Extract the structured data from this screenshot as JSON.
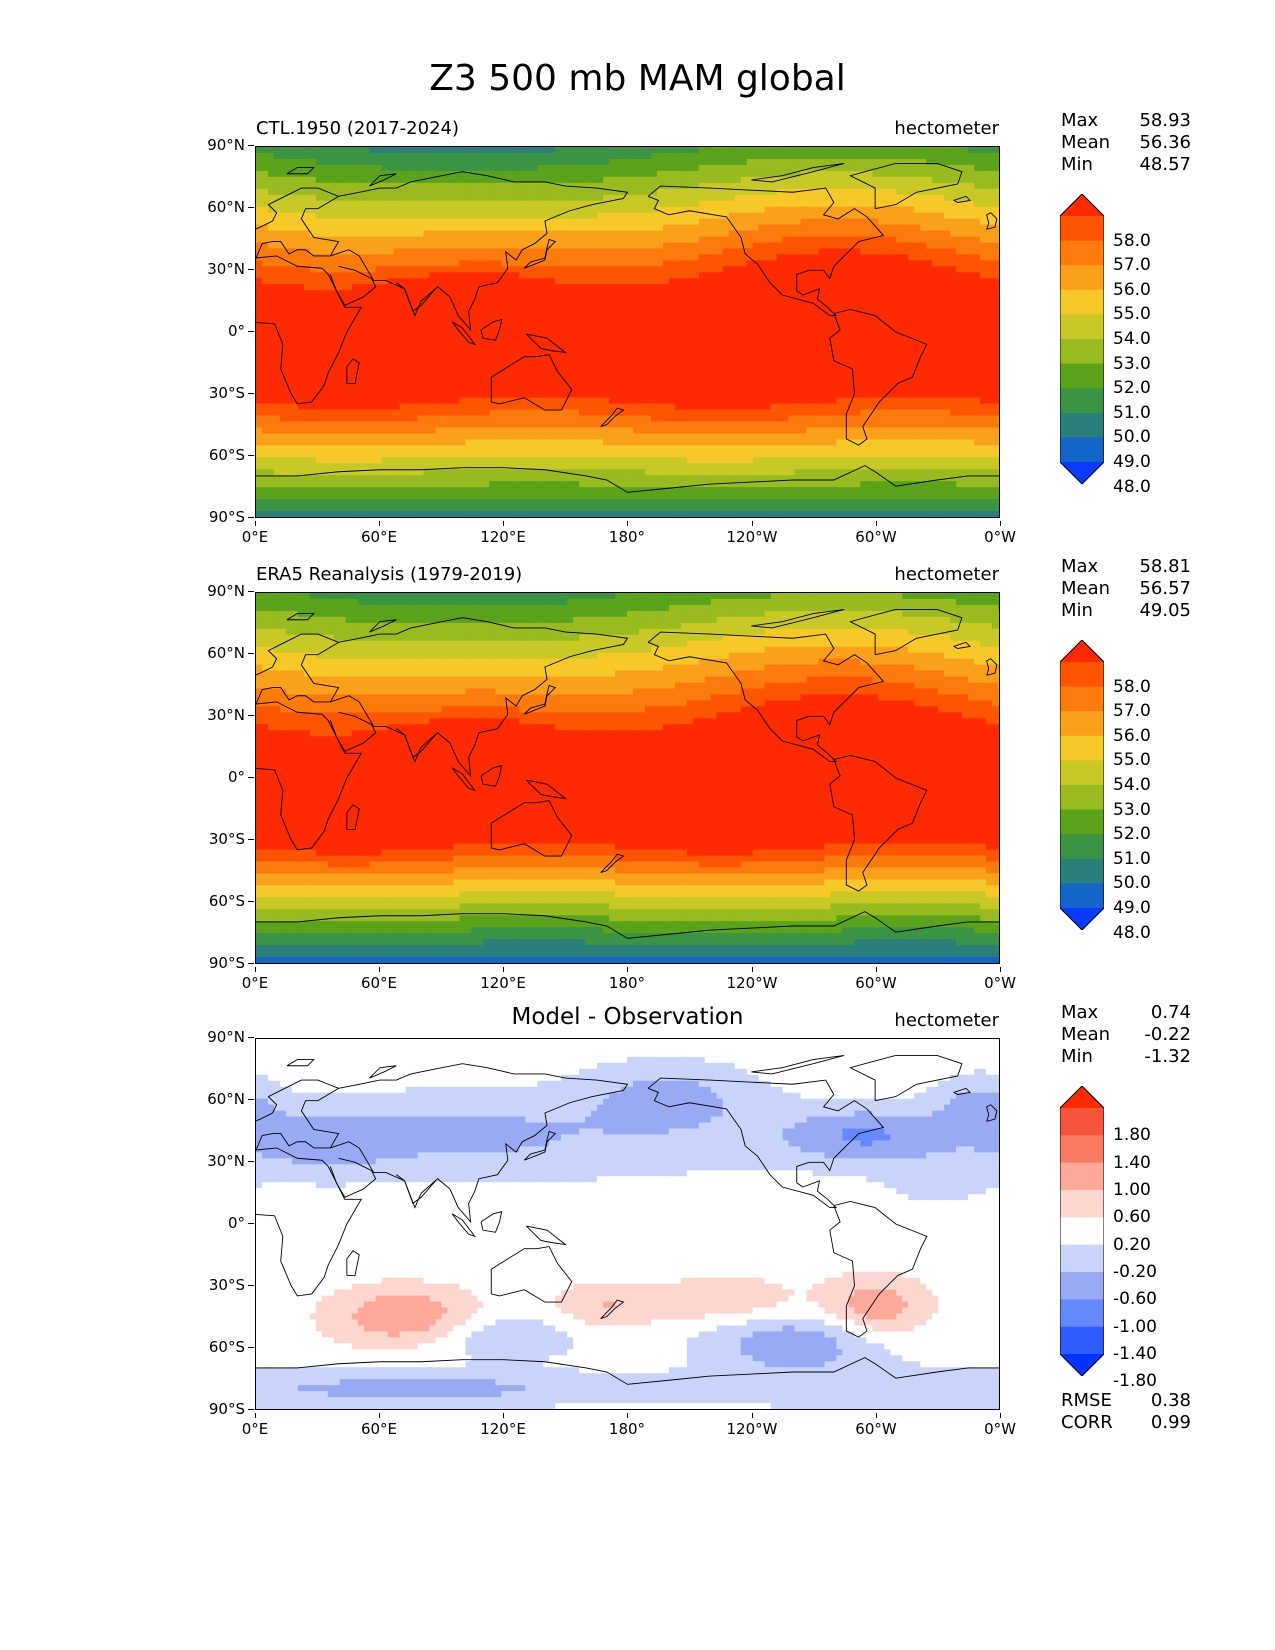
{
  "title": "Z3 500 mb MAM global",
  "y_ticks": [
    "90°N",
    "60°N",
    "30°N",
    "0°",
    "30°S",
    "60°S",
    "90°S"
  ],
  "x_ticks": [
    "0°E",
    "60°E",
    "120°E",
    "180°",
    "120°W",
    "60°W",
    "0°W"
  ],
  "panels": [
    {
      "left_label": "CTL.1950 (2017-2024)",
      "center_label": "",
      "unit": "hectometer",
      "stats": [
        {
          "k": "Max",
          "v": "58.93"
        },
        {
          "k": "Mean",
          "v": "56.36"
        },
        {
          "k": "Min",
          "v": "48.57"
        }
      ],
      "colorbar_labels": [
        "58.0",
        "57.0",
        "56.0",
        "55.0",
        "54.0",
        "53.0",
        "52.0",
        "51.0",
        "50.0",
        "49.0",
        "48.0"
      ]
    },
    {
      "left_label": "ERA5 Reanalysis (1979-2019)",
      "center_label": "",
      "unit": "hectometer",
      "stats": [
        {
          "k": "Max",
          "v": "58.81"
        },
        {
          "k": "Mean",
          "v": "56.57"
        },
        {
          "k": "Min",
          "v": "49.05"
        }
      ],
      "colorbar_labels": [
        "58.0",
        "57.0",
        "56.0",
        "55.0",
        "54.0",
        "53.0",
        "52.0",
        "51.0",
        "50.0",
        "49.0",
        "48.0"
      ]
    },
    {
      "left_label": "",
      "center_label": "Model - Observation",
      "unit": "hectometer",
      "stats": [
        {
          "k": "Max",
          "v": "0.74"
        },
        {
          "k": "Mean",
          "v": "-0.22"
        },
        {
          "k": "Min",
          "v": "-1.32"
        }
      ],
      "colorbar_labels": [
        "1.80",
        "1.40",
        "1.00",
        "0.60",
        "0.20",
        "-0.20",
        "-0.60",
        "-1.00",
        "-1.40",
        "-1.80"
      ],
      "footer": [
        {
          "k": "RMSE",
          "v": "0.38"
        },
        {
          "k": "CORR",
          "v": "0.99"
        }
      ]
    }
  ],
  "colors": {
    "field": [
      "#0a3bff",
      "#1266c8",
      "#2b7f7a",
      "#3a9444",
      "#5aa31a",
      "#98bb1f",
      "#c8c826",
      "#f6c928",
      "#fba01a",
      "#fd7a0c",
      "#ff5500",
      "#ff2a00"
    ],
    "diff": [
      "#0033ff",
      "#2e5cff",
      "#6688ff",
      "#99aaf5",
      "#c9d4fa",
      "#ffffff",
      "#fdd6d0",
      "#fca99a",
      "#fa7a62",
      "#f7553b",
      "#ff2a00"
    ]
  }
}
